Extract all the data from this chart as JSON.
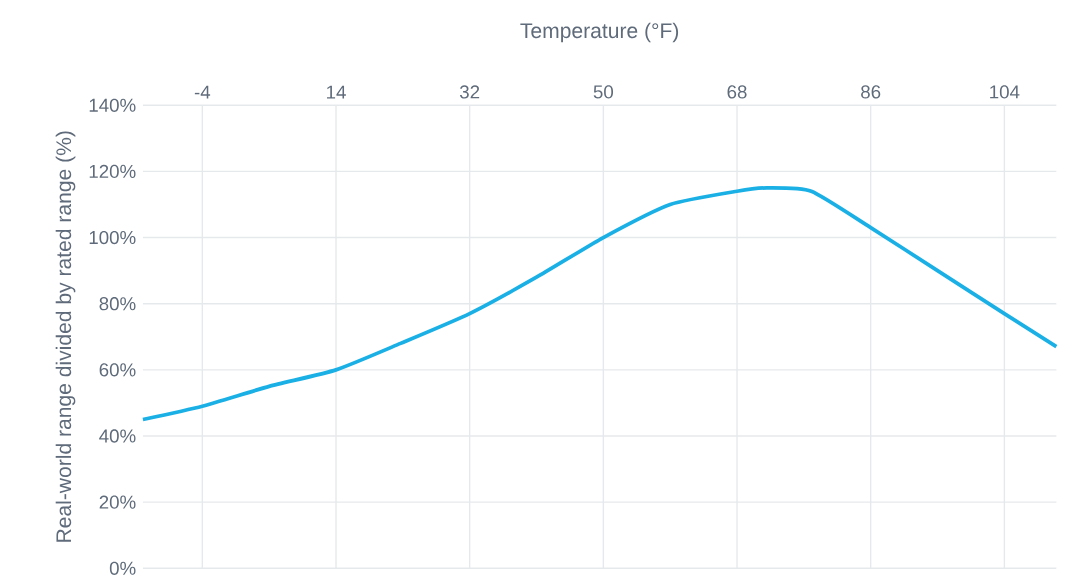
{
  "chart_data": {
    "type": "line",
    "xlabel": "Temperature (°F)",
    "ylabel": "Real-world range divided by rated range (%)",
    "x": [
      -12,
      -4,
      5,
      14,
      22.7,
      32,
      41,
      50,
      59,
      68,
      72,
      78,
      86,
      95,
      104,
      111
    ],
    "series": [
      {
        "color": "#1ab0e6",
        "values": [
          45,
          49,
          55,
          60,
          68,
          77,
          88,
          100,
          110,
          114,
          115,
          114,
          103,
          90,
          77,
          67
        ]
      }
    ],
    "xlim": [
      -12,
      111
    ],
    "xticks": [
      -4,
      14,
      32,
      50,
      68,
      86,
      104
    ],
    "ylim": [
      0,
      140
    ],
    "yticks": [
      {
        "value": 0,
        "label": "0%"
      },
      {
        "value": 20,
        "label": "20%"
      },
      {
        "value": 40,
        "label": "40%"
      },
      {
        "value": 60,
        "label": "60%"
      },
      {
        "value": 80,
        "label": "80%"
      },
      {
        "value": 100,
        "label": "100%"
      },
      {
        "value": 120,
        "label": "120%"
      },
      {
        "value": 140,
        "label": "140%"
      }
    ],
    "grid": true,
    "marker": "none",
    "line_style": "solid"
  }
}
